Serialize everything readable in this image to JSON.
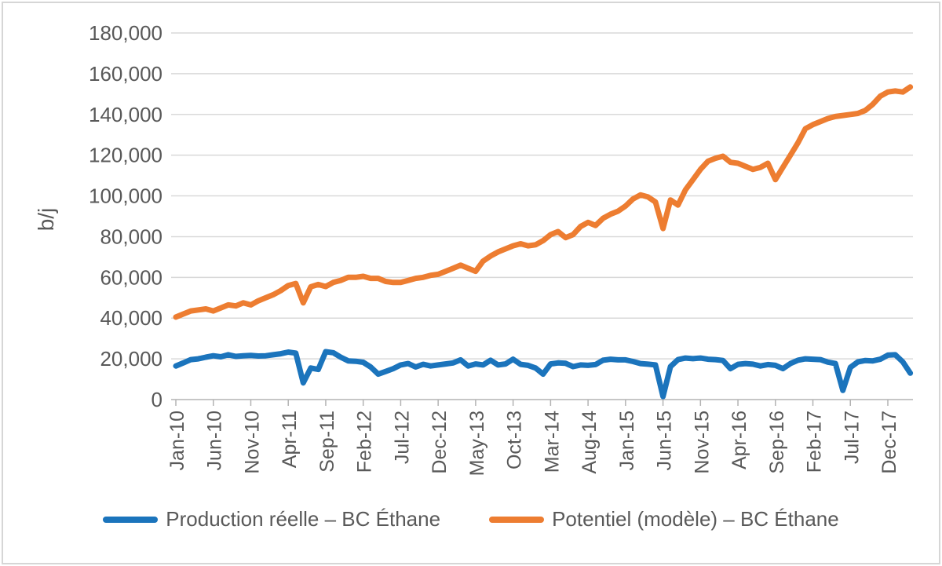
{
  "figure": {
    "y_axis_title": "b/j",
    "legend": [
      {
        "label": "Production réelle – BC Éthane",
        "color": "#1b74bc"
      },
      {
        "label": "Potentiel (modèle) – BC Éthane",
        "color": "#ed7d31"
      }
    ]
  },
  "chart_data": {
    "type": "line",
    "title": "",
    "xlabel": "",
    "ylabel": "b/j",
    "ylim": [
      0,
      180000
    ],
    "y_tick_step": 20000,
    "grid": true,
    "legend_position": "bottom",
    "x_tick_labels": [
      "Jan-10",
      "Jun-10",
      "Nov-10",
      "Apr-11",
      "Sep-11",
      "Feb-12",
      "Jul-12",
      "Dec-12",
      "May-13",
      "Oct-13",
      "Mar-14",
      "Aug-14",
      "Jan-15",
      "Jun-15",
      "Nov-15",
      "Apr-16",
      "Sep-16",
      "Feb-17",
      "Jul-17",
      "Dec-17"
    ],
    "x_tick_every": 5,
    "x": [
      "Jan-10",
      "Feb-10",
      "Mar-10",
      "Apr-10",
      "May-10",
      "Jun-10",
      "Jul-10",
      "Aug-10",
      "Sep-10",
      "Oct-10",
      "Nov-10",
      "Dec-10",
      "Jan-11",
      "Feb-11",
      "Mar-11",
      "Apr-11",
      "May-11",
      "Jun-11",
      "Jul-11",
      "Aug-11",
      "Sep-11",
      "Oct-11",
      "Nov-11",
      "Dec-11",
      "Jan-12",
      "Feb-12",
      "Mar-12",
      "Apr-12",
      "May-12",
      "Jun-12",
      "Jul-12",
      "Aug-12",
      "Sep-12",
      "Oct-12",
      "Nov-12",
      "Dec-12",
      "Jan-13",
      "Feb-13",
      "Mar-13",
      "Apr-13",
      "May-13",
      "Jun-13",
      "Jul-13",
      "Aug-13",
      "Sep-13",
      "Oct-13",
      "Nov-13",
      "Dec-13",
      "Jan-14",
      "Feb-14",
      "Mar-14",
      "Apr-14",
      "May-14",
      "Jun-14",
      "Jul-14",
      "Aug-14",
      "Sep-14",
      "Oct-14",
      "Nov-14",
      "Dec-14",
      "Jan-15",
      "Feb-15",
      "Mar-15",
      "Apr-15",
      "May-15",
      "Jun-15",
      "Jul-15",
      "Aug-15",
      "Sep-15",
      "Oct-15",
      "Nov-15",
      "Dec-15",
      "Jan-16",
      "Feb-16",
      "Mar-16",
      "Apr-16",
      "May-16",
      "Jun-16",
      "Jul-16",
      "Aug-16",
      "Sep-16",
      "Oct-16",
      "Nov-16",
      "Dec-16",
      "Jan-17",
      "Feb-17",
      "Mar-17",
      "Apr-17",
      "May-17",
      "Jun-17",
      "Jul-17",
      "Aug-17",
      "Sep-17",
      "Oct-17",
      "Nov-17",
      "Dec-17",
      "Jan-18",
      "Feb-18",
      "Mar-18"
    ],
    "series": [
      {
        "name": "Production réelle – BC Éthane",
        "color": "#1b74bc",
        "values": [
          16500,
          18000,
          19600,
          20000,
          20800,
          21500,
          21000,
          22000,
          21200,
          21500,
          21700,
          21400,
          21500,
          22000,
          22500,
          23300,
          22800,
          8200,
          15500,
          14800,
          23500,
          23000,
          20800,
          19000,
          18800,
          18300,
          16000,
          12500,
          13800,
          15200,
          17000,
          17700,
          16000,
          17300,
          16500,
          17000,
          17500,
          18000,
          19500,
          16500,
          17500,
          17000,
          19300,
          17000,
          17500,
          19800,
          17300,
          16800,
          15500,
          12500,
          17500,
          18000,
          17800,
          16200,
          17000,
          16800,
          17200,
          19300,
          19800,
          19500,
          19500,
          18700,
          17700,
          17400,
          17000,
          1500,
          16200,
          19600,
          20400,
          20100,
          20400,
          19800,
          19600,
          19200,
          15200,
          17300,
          17700,
          17400,
          16500,
          17200,
          16800,
          15200,
          17700,
          19300,
          20000,
          19800,
          19600,
          18400,
          17700,
          4500,
          15800,
          18500,
          19200,
          19000,
          19800,
          21800,
          22000,
          18500,
          13000
        ]
      },
      {
        "name": "Potentiel (modèle) – BC Éthane",
        "color": "#ed7d31",
        "values": [
          40500,
          42000,
          43500,
          44000,
          44500,
          43500,
          45000,
          46500,
          46000,
          47500,
          46500,
          48500,
          50000,
          51500,
          53500,
          56000,
          57000,
          47500,
          55400,
          56500,
          55500,
          57500,
          58500,
          60000,
          60000,
          60500,
          59500,
          59500,
          58000,
          57500,
          57500,
          58500,
          59500,
          60000,
          61000,
          61500,
          63000,
          64500,
          66000,
          64500,
          63000,
          68000,
          70500,
          72500,
          74000,
          75500,
          76500,
          75500,
          76000,
          78000,
          81000,
          82500,
          79500,
          81000,
          85000,
          87000,
          85500,
          89000,
          91000,
          92500,
          95000,
          98500,
          100500,
          99500,
          97000,
          84000,
          98000,
          95500,
          103000,
          108000,
          113000,
          117000,
          118500,
          119500,
          116500,
          116000,
          114500,
          113000,
          114000,
          116000,
          108000,
          114000,
          120000,
          126000,
          133000,
          135000,
          136500,
          138000,
          139000,
          139500,
          140000,
          140500,
          142000,
          145000,
          149000,
          151000,
          151500,
          151000,
          153500
        ]
      }
    ]
  }
}
